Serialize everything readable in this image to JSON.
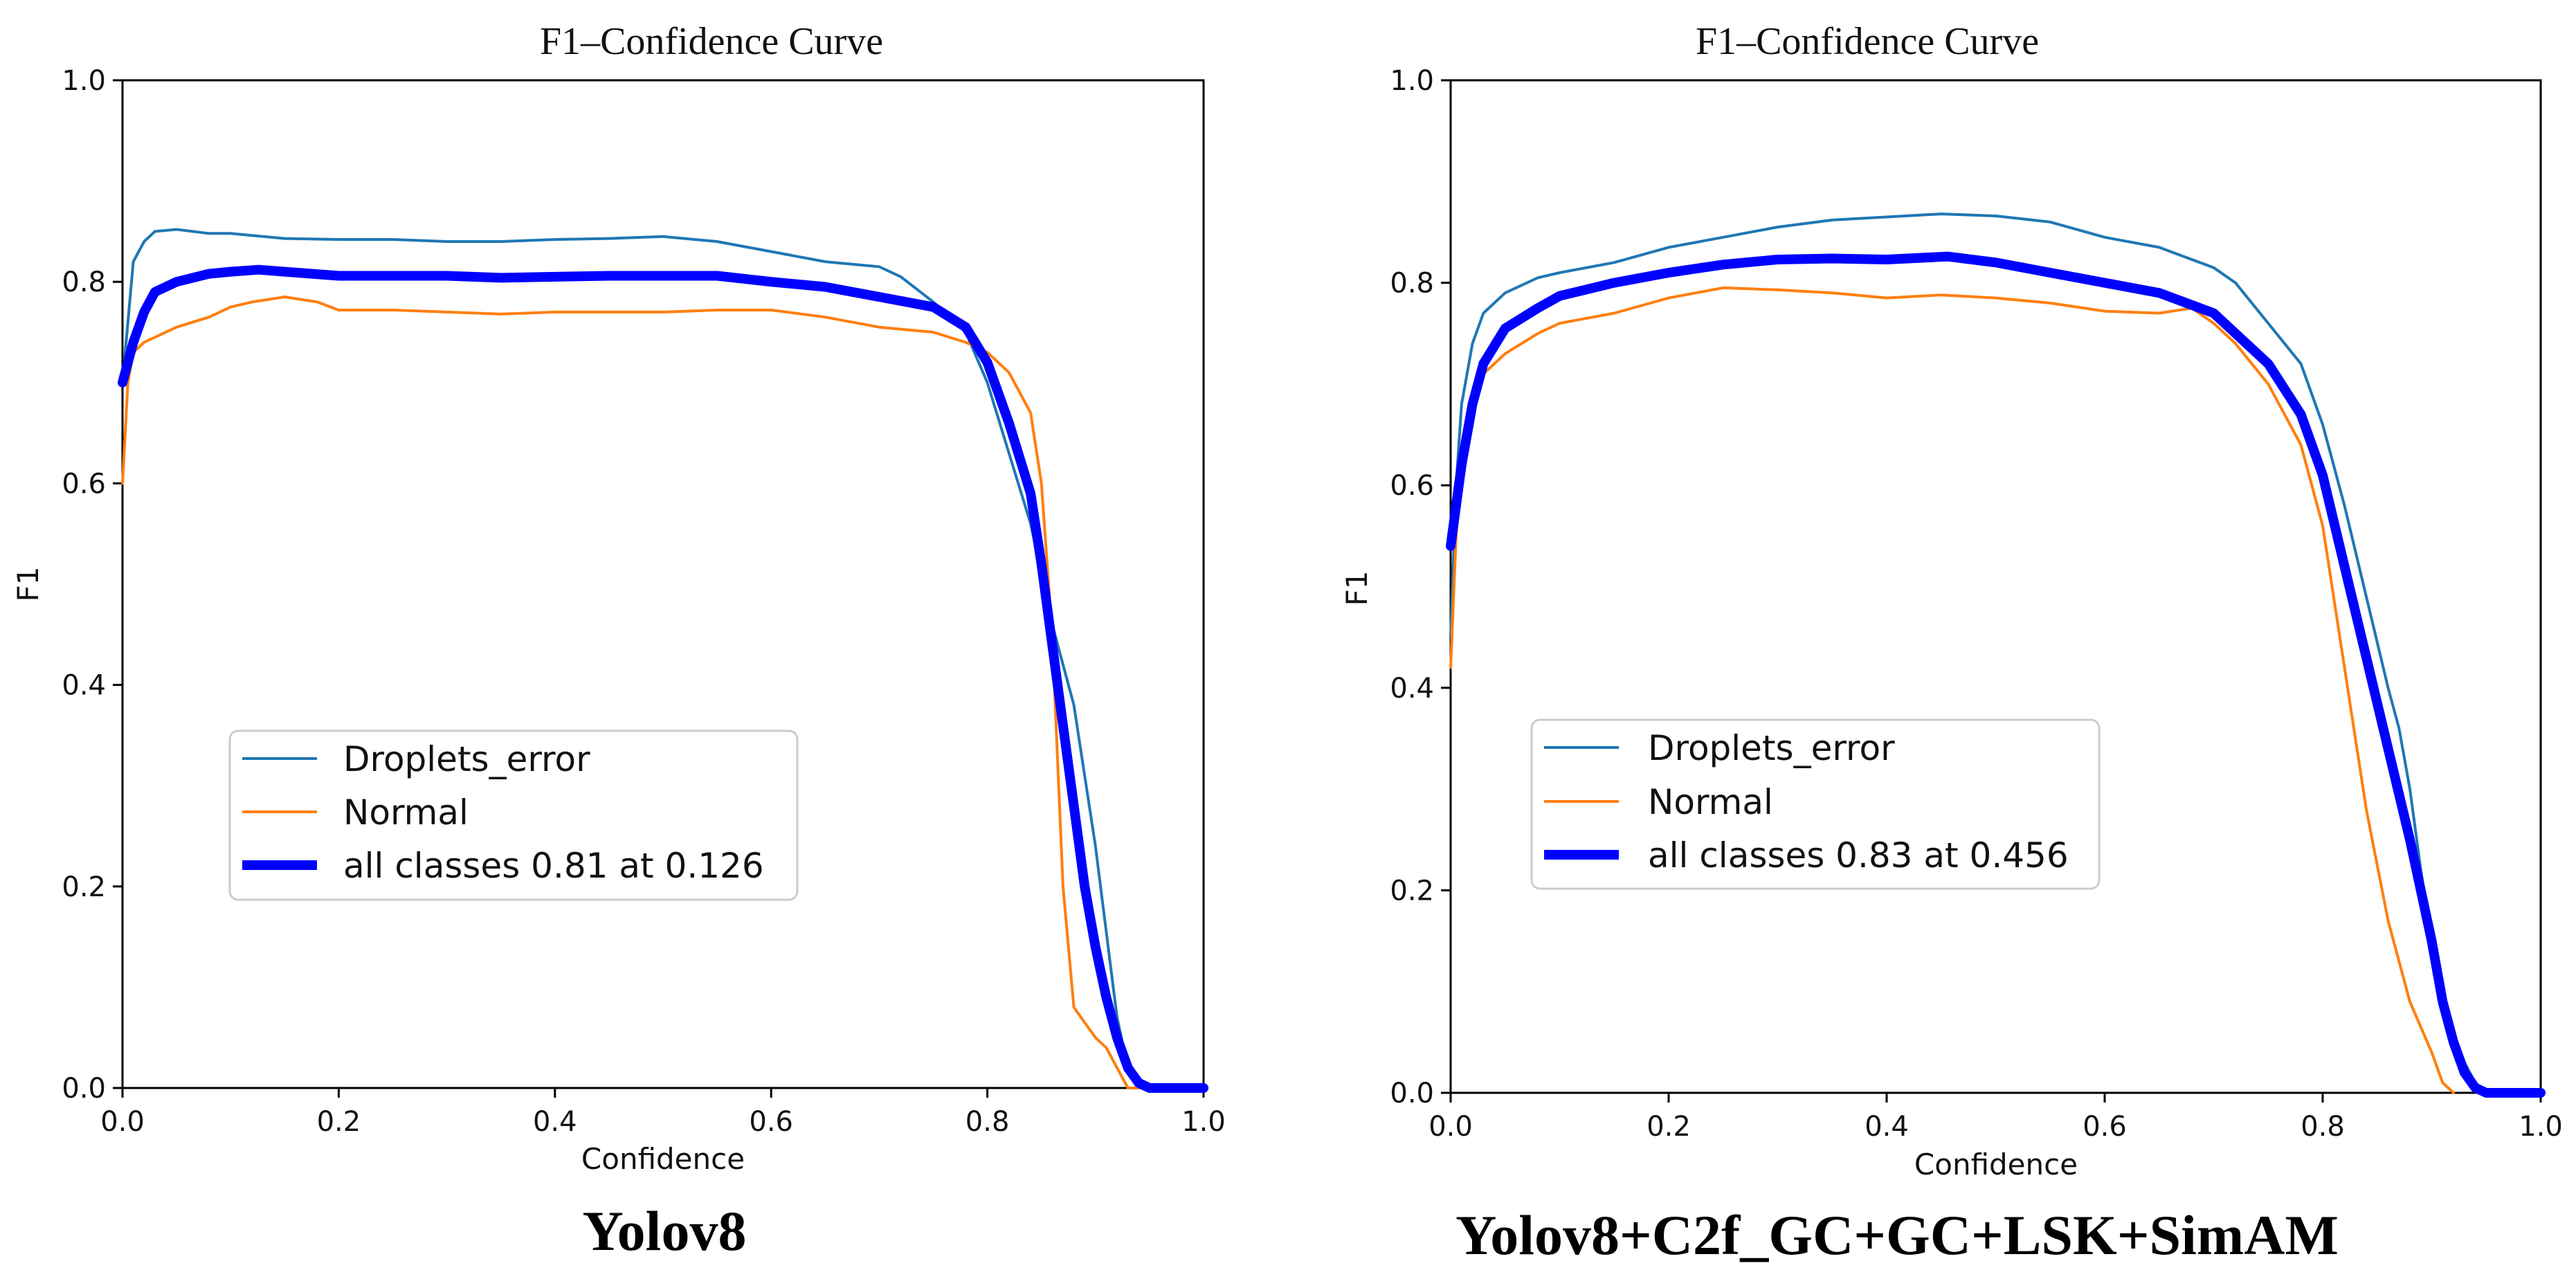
{
  "colors": {
    "droplets_error": "#1f77b4",
    "normal": "#ff7f0e",
    "all_classes": "#0000ff",
    "axis": "#000000"
  },
  "chart_data": [
    {
      "type": "line",
      "title": "F1–Confidence Curve",
      "caption": "Yolov8",
      "xlabel": "Confidence",
      "ylabel": "F1",
      "xlim": [
        0.0,
        1.0
      ],
      "ylim": [
        0.0,
        1.0
      ],
      "xticks": [
        "0.0",
        "0.2",
        "0.4",
        "0.6",
        "0.8",
        "1.0"
      ],
      "yticks": [
        "0.0",
        "0.2",
        "0.4",
        "0.6",
        "0.8",
        "1.0"
      ],
      "legend_position": "center-left",
      "series": [
        {
          "name": "Droplets_error",
          "key": "droplets_error",
          "x": [
            0.0,
            0.01,
            0.02,
            0.03,
            0.05,
            0.08,
            0.1,
            0.12,
            0.15,
            0.2,
            0.25,
            0.3,
            0.35,
            0.4,
            0.45,
            0.5,
            0.55,
            0.6,
            0.65,
            0.7,
            0.72,
            0.75,
            0.78,
            0.8,
            0.82,
            0.84,
            0.86,
            0.88,
            0.9,
            0.92,
            0.93,
            0.94,
            0.95
          ],
          "y": [
            0.7,
            0.82,
            0.84,
            0.85,
            0.852,
            0.848,
            0.848,
            0.846,
            0.843,
            0.842,
            0.842,
            0.84,
            0.84,
            0.842,
            0.843,
            0.845,
            0.84,
            0.83,
            0.82,
            0.815,
            0.805,
            0.78,
            0.75,
            0.7,
            0.63,
            0.56,
            0.46,
            0.38,
            0.24,
            0.07,
            0.02,
            0.0,
            0.0
          ]
        },
        {
          "name": "Normal",
          "key": "normal",
          "x": [
            0.0,
            0.005,
            0.01,
            0.02,
            0.03,
            0.05,
            0.08,
            0.1,
            0.12,
            0.15,
            0.18,
            0.2,
            0.25,
            0.3,
            0.35,
            0.4,
            0.45,
            0.5,
            0.55,
            0.6,
            0.65,
            0.7,
            0.75,
            0.78,
            0.8,
            0.82,
            0.84,
            0.85,
            0.86,
            0.87,
            0.88,
            0.9,
            0.91,
            0.92,
            0.93,
            0.94
          ],
          "y": [
            0.6,
            0.7,
            0.73,
            0.74,
            0.745,
            0.755,
            0.765,
            0.775,
            0.78,
            0.785,
            0.78,
            0.772,
            0.772,
            0.77,
            0.768,
            0.77,
            0.77,
            0.77,
            0.772,
            0.772,
            0.765,
            0.755,
            0.75,
            0.74,
            0.73,
            0.71,
            0.67,
            0.6,
            0.45,
            0.2,
            0.08,
            0.05,
            0.04,
            0.02,
            0.0,
            0.0
          ]
        },
        {
          "name": "all classes 0.81 at 0.126",
          "key": "all_classes",
          "bold": true,
          "x": [
            0.0,
            0.01,
            0.02,
            0.03,
            0.05,
            0.08,
            0.1,
            0.126,
            0.15,
            0.2,
            0.25,
            0.3,
            0.35,
            0.4,
            0.45,
            0.5,
            0.55,
            0.6,
            0.65,
            0.7,
            0.75,
            0.78,
            0.8,
            0.82,
            0.84,
            0.85,
            0.86,
            0.87,
            0.88,
            0.89,
            0.9,
            0.91,
            0.92,
            0.93,
            0.94,
            0.95,
            0.96,
            1.0
          ],
          "y": [
            0.7,
            0.74,
            0.77,
            0.79,
            0.8,
            0.808,
            0.81,
            0.812,
            0.81,
            0.806,
            0.806,
            0.806,
            0.804,
            0.805,
            0.806,
            0.806,
            0.806,
            0.8,
            0.795,
            0.785,
            0.775,
            0.755,
            0.72,
            0.66,
            0.59,
            0.52,
            0.44,
            0.36,
            0.28,
            0.2,
            0.14,
            0.09,
            0.05,
            0.02,
            0.005,
            0.0,
            0.0,
            0.0
          ]
        }
      ]
    },
    {
      "type": "line",
      "title": "F1–Confidence Curve",
      "caption": "Yolov8+C2f_GC+GC+LSK+SimAM",
      "xlabel": "Confidence",
      "ylabel": "F1",
      "xlim": [
        0.0,
        1.0
      ],
      "ylim": [
        0.0,
        1.0
      ],
      "xticks": [
        "0.0",
        "0.2",
        "0.4",
        "0.6",
        "0.8",
        "1.0"
      ],
      "yticks": [
        "0.0",
        "0.2",
        "0.4",
        "0.6",
        "0.8",
        "1.0"
      ],
      "legend_position": "center-left",
      "series": [
        {
          "name": "Droplets_error",
          "key": "droplets_error",
          "x": [
            0.0,
            0.005,
            0.01,
            0.02,
            0.03,
            0.05,
            0.08,
            0.1,
            0.15,
            0.2,
            0.25,
            0.3,
            0.35,
            0.4,
            0.45,
            0.5,
            0.55,
            0.6,
            0.65,
            0.7,
            0.72,
            0.75,
            0.78,
            0.8,
            0.82,
            0.84,
            0.86,
            0.87,
            0.88,
            0.89,
            0.9,
            0.91,
            0.92,
            0.93,
            0.94,
            0.95
          ],
          "y": [
            0.45,
            0.6,
            0.68,
            0.74,
            0.77,
            0.79,
            0.805,
            0.81,
            0.82,
            0.835,
            0.845,
            0.855,
            0.862,
            0.865,
            0.868,
            0.866,
            0.86,
            0.845,
            0.835,
            0.815,
            0.8,
            0.76,
            0.72,
            0.66,
            0.58,
            0.49,
            0.4,
            0.36,
            0.3,
            0.22,
            0.15,
            0.1,
            0.06,
            0.03,
            0.01,
            0.0
          ]
        },
        {
          "name": "Normal",
          "key": "normal",
          "x": [
            0.0,
            0.005,
            0.01,
            0.02,
            0.03,
            0.05,
            0.08,
            0.1,
            0.15,
            0.2,
            0.25,
            0.3,
            0.35,
            0.4,
            0.45,
            0.5,
            0.55,
            0.6,
            0.65,
            0.68,
            0.7,
            0.72,
            0.75,
            0.78,
            0.8,
            0.82,
            0.84,
            0.86,
            0.88,
            0.9,
            0.91,
            0.92
          ],
          "y": [
            0.42,
            0.55,
            0.62,
            0.68,
            0.71,
            0.73,
            0.75,
            0.76,
            0.77,
            0.785,
            0.795,
            0.793,
            0.79,
            0.785,
            0.788,
            0.785,
            0.78,
            0.772,
            0.77,
            0.775,
            0.76,
            0.74,
            0.7,
            0.64,
            0.56,
            0.42,
            0.28,
            0.17,
            0.09,
            0.04,
            0.01,
            0.0
          ]
        },
        {
          "name": "all classes 0.83 at 0.456",
          "key": "all_classes",
          "bold": true,
          "x": [
            0.0,
            0.005,
            0.01,
            0.02,
            0.03,
            0.05,
            0.08,
            0.1,
            0.15,
            0.2,
            0.25,
            0.3,
            0.35,
            0.4,
            0.456,
            0.5,
            0.55,
            0.6,
            0.65,
            0.7,
            0.72,
            0.75,
            0.78,
            0.8,
            0.82,
            0.84,
            0.86,
            0.88,
            0.9,
            0.91,
            0.92,
            0.93,
            0.94,
            0.95,
            1.0
          ],
          "y": [
            0.54,
            0.58,
            0.62,
            0.68,
            0.72,
            0.755,
            0.775,
            0.787,
            0.8,
            0.81,
            0.818,
            0.823,
            0.824,
            0.823,
            0.826,
            0.82,
            0.81,
            0.8,
            0.79,
            0.77,
            0.75,
            0.72,
            0.67,
            0.61,
            0.52,
            0.43,
            0.34,
            0.25,
            0.15,
            0.09,
            0.05,
            0.02,
            0.005,
            0.0,
            0.0
          ]
        }
      ]
    }
  ]
}
